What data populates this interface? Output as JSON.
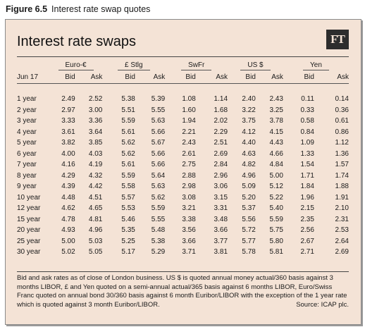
{
  "figure": {
    "number": "Figure 6.5",
    "caption": "Interest rate swap quotes"
  },
  "panel": {
    "title": "Interest rate swaps",
    "logo": "FT"
  },
  "table": {
    "date_label": "Jun 17",
    "currencies": [
      "Euro-€",
      "£ Stlg",
      "SwFr",
      "US $",
      "Yen"
    ],
    "bid_label": "Bid",
    "ask_label": "Ask",
    "rows": [
      {
        "term": "1 year",
        "values": [
          "2.49",
          "2.52",
          "5.38",
          "5.39",
          "1.08",
          "1.14",
          "2.40",
          "2.43",
          "0.11",
          "0.14"
        ]
      },
      {
        "term": "2 year",
        "values": [
          "2.97",
          "3.00",
          "5.51",
          "5.55",
          "1.60",
          "1.68",
          "3.22",
          "3.25",
          "0.33",
          "0.36"
        ]
      },
      {
        "term": "3 year",
        "values": [
          "3.33",
          "3.36",
          "5.59",
          "5.63",
          "1.94",
          "2.02",
          "3.75",
          "3.78",
          "0.58",
          "0.61"
        ]
      },
      {
        "term": "4 year",
        "values": [
          "3.61",
          "3.64",
          "5.61",
          "5.66",
          "2.21",
          "2.29",
          "4.12",
          "4.15",
          "0.84",
          "0.86"
        ]
      },
      {
        "term": "5 year",
        "values": [
          "3.82",
          "3.85",
          "5.62",
          "5.67",
          "2.43",
          "2.51",
          "4.40",
          "4.43",
          "1.09",
          "1.12"
        ]
      },
      {
        "term": "6 year",
        "values": [
          "4.00",
          "4.03",
          "5.62",
          "5.66",
          "2.61",
          "2.69",
          "4.63",
          "4.66",
          "1.33",
          "1.36"
        ]
      },
      {
        "term": "7 year",
        "values": [
          "4.16",
          "4.19",
          "5.61",
          "5.66",
          "2.75",
          "2.84",
          "4.82",
          "4.84",
          "1.54",
          "1.57"
        ]
      },
      {
        "term": "8 year",
        "values": [
          "4.29",
          "4.32",
          "5.59",
          "5.64",
          "2.88",
          "2.96",
          "4.96",
          "5.00",
          "1.71",
          "1.74"
        ]
      },
      {
        "term": "9 year",
        "values": [
          "4.39",
          "4.42",
          "5.58",
          "5.63",
          "2.98",
          "3.06",
          "5.09",
          "5.12",
          "1.84",
          "1.88"
        ]
      },
      {
        "term": "10 year",
        "values": [
          "4.48",
          "4.51",
          "5.57",
          "5.62",
          "3.08",
          "3.15",
          "5.20",
          "5.22",
          "1.96",
          "1.91"
        ]
      },
      {
        "term": "12 year",
        "values": [
          "4.62",
          "4.65",
          "5.53",
          "5.59",
          "3.21",
          "3.31",
          "5.37",
          "5.40",
          "2.15",
          "2.10"
        ]
      },
      {
        "term": "15 year",
        "values": [
          "4.78",
          "4.81",
          "5.46",
          "5.55",
          "3.38",
          "3.48",
          "5.56",
          "5.59",
          "2.35",
          "2.31"
        ]
      },
      {
        "term": "20 year",
        "values": [
          "4.93",
          "4.96",
          "5.35",
          "5.48",
          "3.56",
          "3.66",
          "5.72",
          "5.75",
          "2.56",
          "2.53"
        ]
      },
      {
        "term": "25 year",
        "values": [
          "5.00",
          "5.03",
          "5.25",
          "5.38",
          "3.66",
          "3.77",
          "5.77",
          "5.80",
          "2.67",
          "2.64"
        ]
      },
      {
        "term": "30 year",
        "values": [
          "5.02",
          "5.05",
          "5.17",
          "5.29",
          "3.71",
          "3.81",
          "5.78",
          "5.81",
          "2.71",
          "2.69"
        ]
      }
    ]
  },
  "notes": {
    "text": "Bid and ask rates as of close of London business. US $ is quoted annual money actual/360 basis against 3 months LIBOR, £ and Yen quoted on a semi-annual actual/365 basis against 6 months LIBOR, Euro/Swiss Franc quoted on annual bond 30/360 basis against 6 month Euribor/LIBOR with the exception of the 1 year rate which is quoted against 3 month Euribor/LIBOR.",
    "source": "Source: ICAP plc."
  }
}
